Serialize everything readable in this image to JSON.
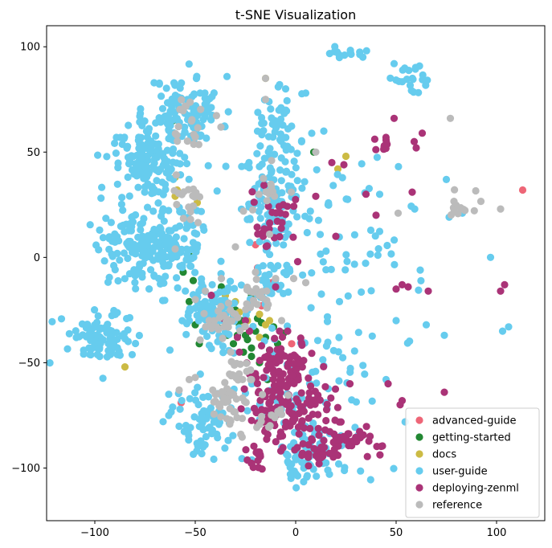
{
  "chart_data": {
    "type": "scatter",
    "title": "t-SNE Visualization",
    "xlabel": "",
    "ylabel": "",
    "xlim": [
      -124,
      124
    ],
    "ylim": [
      -125,
      110
    ],
    "xticks": [
      -100,
      -50,
      0,
      50,
      100
    ],
    "yticks": [
      100,
      50,
      0,
      -50,
      -100
    ],
    "grid": false,
    "legend_position": "lower-right",
    "series": [
      {
        "name": "advanced-guide",
        "color": "#EE6677",
        "points": [
          [
            113,
            32
          ],
          [
            -57,
            -69
          ],
          [
            -12,
            -12
          ],
          [
            -20,
            6
          ],
          [
            -3,
            -70
          ],
          [
            -19,
            -5
          ],
          [
            -2,
            -41
          ],
          [
            -17,
            -23
          ]
        ]
      },
      {
        "name": "getting-started",
        "color": "#228833",
        "points": [
          [
            -61,
            65
          ],
          [
            9,
            50
          ],
          [
            -53,
            1
          ],
          [
            -56,
            -7
          ],
          [
            -51,
            -11
          ],
          [
            -37,
            -14
          ],
          [
            -53,
            -21
          ],
          [
            -45,
            -29
          ],
          [
            -39,
            -33
          ],
          [
            -34,
            -37
          ],
          [
            -30,
            -25
          ],
          [
            -27,
            -30
          ],
          [
            -25,
            -37
          ],
          [
            -22,
            -43
          ],
          [
            -19,
            -29
          ],
          [
            -15,
            -38
          ],
          [
            -13,
            -44
          ],
          [
            -11,
            -33
          ],
          [
            -17,
            -31
          ],
          [
            -22,
            -18
          ],
          [
            -26,
            -45
          ],
          [
            -22,
            -47
          ],
          [
            -18,
            -50
          ],
          [
            -28,
            -32
          ],
          [
            -24,
            -39
          ],
          [
            -50,
            -32
          ],
          [
            -48,
            -41
          ],
          [
            -14,
            -58
          ],
          [
            -9,
            -41
          ],
          [
            -31,
            -41
          ],
          [
            -20,
            -35
          ],
          [
            -6,
            -36
          ],
          [
            -29,
            -37
          ]
        ]
      },
      {
        "name": "docs",
        "color": "#CCBB44",
        "points": [
          [
            -15,
            85
          ],
          [
            -60,
            38
          ],
          [
            -59,
            32
          ],
          [
            -60,
            29
          ],
          [
            -49,
            26
          ],
          [
            21,
            42
          ],
          [
            25,
            48
          ],
          [
            -85,
            -52
          ],
          [
            -35,
            -18
          ],
          [
            -33,
            -24
          ],
          [
            -30,
            -21
          ],
          [
            -31,
            -28
          ],
          [
            -28,
            -26
          ],
          [
            -26,
            -33
          ],
          [
            -18,
            -27
          ],
          [
            -13,
            -30
          ],
          [
            -18,
            -38
          ],
          [
            -24,
            -30
          ],
          [
            -15,
            -32
          ]
        ]
      },
      {
        "name": "user-guide",
        "color": "#66CCEE",
        "clusters": [
          {
            "cx": -55,
            "cy": 70,
            "sx": 9,
            "sy": 8,
            "n": 110,
            "seed": 11
          },
          {
            "cx": -72,
            "cy": 45,
            "sx": 10,
            "sy": 9,
            "n": 140,
            "seed": 12
          },
          {
            "cx": -70,
            "cy": 5,
            "sx": 14,
            "sy": 10,
            "n": 220,
            "seed": 13
          },
          {
            "cx": -95,
            "cy": -38,
            "sx": 9,
            "sy": 6,
            "n": 90,
            "seed": 14
          },
          {
            "cx": -40,
            "cy": -25,
            "sx": 8,
            "sy": 9,
            "n": 90,
            "seed": 15
          },
          {
            "cx": -10,
            "cy": 30,
            "sx": 8,
            "sy": 14,
            "n": 120,
            "seed": 16
          },
          {
            "cx": -10,
            "cy": 65,
            "sx": 5,
            "sy": 6,
            "n": 35,
            "seed": 17
          },
          {
            "cx": -45,
            "cy": -78,
            "sx": 8,
            "sy": 9,
            "n": 70,
            "seed": 18
          },
          {
            "cx": 5,
            "cy": -95,
            "sx": 6,
            "sy": 6,
            "n": 60,
            "seed": 19
          },
          {
            "cx": 25,
            "cy": 97,
            "sx": 6,
            "sy": 2,
            "n": 14,
            "seed": 20
          },
          {
            "cx": 57,
            "cy": 85,
            "sx": 6,
            "sy": 4,
            "n": 22,
            "seed": 21
          },
          {
            "cx": 12,
            "cy": -45,
            "sx": 20,
            "sy": 30,
            "n": 60,
            "seed": 22
          },
          {
            "cx": 35,
            "cy": 10,
            "sx": 18,
            "sy": 15,
            "n": 45,
            "seed": 23
          },
          {
            "cx": -15,
            "cy": -15,
            "sx": 6,
            "sy": 8,
            "n": 40,
            "seed": 24
          },
          {
            "cx": 5,
            "cy": -72,
            "sx": 12,
            "sy": 10,
            "n": 40,
            "seed": 25
          }
        ],
        "points": [
          [
            97,
            0
          ],
          [
            103,
            -35
          ],
          [
            106,
            -33
          ],
          [
            75,
            37
          ],
          [
            65,
            -32
          ],
          [
            74,
            -37
          ],
          [
            62,
            -6
          ],
          [
            83,
            21
          ],
          [
            5,
            78
          ],
          [
            -5,
            80
          ],
          [
            14,
            60
          ],
          [
            -8,
            82
          ],
          [
            -66,
            -78
          ],
          [
            -18,
            -77
          ],
          [
            45,
            -58
          ],
          [
            50,
            -30
          ]
        ]
      },
      {
        "name": "deploying-zenml",
        "color": "#AA3377",
        "clusters": [
          {
            "cx": -10,
            "cy": -70,
            "sx": 8,
            "sy": 12,
            "n": 90,
            "seed": 31
          },
          {
            "cx": -5,
            "cy": -50,
            "sx": 7,
            "sy": 6,
            "n": 50,
            "seed": 32
          },
          {
            "cx": 8,
            "cy": -75,
            "sx": 6,
            "sy": 8,
            "n": 45,
            "seed": 33
          },
          {
            "cx": 25,
            "cy": -85,
            "sx": 5,
            "sy": 4,
            "n": 25,
            "seed": 34
          },
          {
            "cx": 12,
            "cy": -93,
            "sx": 7,
            "sy": 4,
            "n": 25,
            "seed": 35
          },
          {
            "cx": -20,
            "cy": -95,
            "sx": 3,
            "sy": 3,
            "n": 14,
            "seed": 36
          },
          {
            "cx": 38,
            "cy": -90,
            "sx": 4,
            "sy": 3,
            "n": 10,
            "seed": 37
          },
          {
            "cx": -12,
            "cy": 20,
            "sx": 6,
            "sy": 8,
            "n": 28,
            "seed": 38
          },
          {
            "cx": 43,
            "cy": 54,
            "sx": 3,
            "sy": 2,
            "n": 10,
            "seed": 39
          }
        ],
        "points": [
          [
            49,
            66
          ],
          [
            63,
            59
          ],
          [
            59,
            55
          ],
          [
            60,
            52
          ],
          [
            24,
            44
          ],
          [
            18,
            45
          ],
          [
            58,
            31
          ],
          [
            35,
            30
          ],
          [
            40,
            20
          ],
          [
            10,
            29
          ],
          [
            20,
            10
          ],
          [
            53,
            -13
          ],
          [
            56,
            -14
          ],
          [
            50,
            -15
          ],
          [
            66,
            -16
          ],
          [
            104,
            -13
          ],
          [
            102,
            -16
          ],
          [
            46,
            -60
          ],
          [
            53,
            -68
          ],
          [
            52,
            -70
          ],
          [
            74,
            -64
          ],
          [
            27,
            -60
          ],
          [
            -23,
            -35
          ],
          [
            -10,
            -14
          ],
          [
            1,
            -2
          ],
          [
            -4,
            -35
          ],
          [
            -25,
            -30
          ],
          [
            -42,
            -18
          ],
          [
            -36,
            -29
          ],
          [
            -17,
            -42
          ],
          [
            -29,
            -38
          ],
          [
            -8,
            -35
          ],
          [
            -13,
            -51
          ],
          [
            -16,
            -57
          ],
          [
            -28,
            -45
          ]
        ]
      },
      {
        "name": "reference",
        "color": "#BBBBBB",
        "clusters": [
          {
            "cx": -33,
            "cy": -70,
            "sx": 5,
            "sy": 6,
            "n": 40,
            "seed": 41
          },
          {
            "cx": -30,
            "cy": -55,
            "sx": 4,
            "sy": 5,
            "n": 20,
            "seed": 42
          },
          {
            "cx": -38,
            "cy": -30,
            "sx": 6,
            "sy": 5,
            "n": 28,
            "seed": 43
          },
          {
            "cx": -20,
            "cy": -20,
            "sx": 5,
            "sy": 4,
            "n": 20,
            "seed": 44
          },
          {
            "cx": -55,
            "cy": 28,
            "sx": 4,
            "sy": 6,
            "n": 18,
            "seed": 45
          },
          {
            "cx": -52,
            "cy": 65,
            "sx": 5,
            "sy": 6,
            "n": 22,
            "seed": 46
          },
          {
            "cx": -15,
            "cy": 32,
            "sx": 4,
            "sy": 3,
            "n": 12,
            "seed": 47
          },
          {
            "cx": 83,
            "cy": 26,
            "sx": 4,
            "sy": 3,
            "n": 14,
            "seed": 48
          },
          {
            "cx": -12,
            "cy": -75,
            "sx": 5,
            "sy": 4,
            "n": 14,
            "seed": 49
          }
        ],
        "points": [
          [
            -15,
            85
          ],
          [
            77,
            66
          ],
          [
            102,
            23
          ],
          [
            51,
            21
          ],
          [
            10,
            50
          ],
          [
            -15,
            75
          ],
          [
            -10,
            -10
          ],
          [
            -13,
            11
          ],
          [
            -36,
            -67
          ],
          [
            -40,
            -65
          ],
          [
            -50,
            -57
          ],
          [
            5,
            -12
          ],
          [
            -1,
            -10
          ],
          [
            -58,
            -63
          ],
          [
            -53,
            -58
          ],
          [
            -50,
            -20
          ],
          [
            -45,
            -16
          ],
          [
            -37,
            -10
          ],
          [
            -60,
            4
          ],
          [
            -12,
            46
          ],
          [
            -30,
            5
          ],
          [
            -26,
            22
          ],
          [
            -20,
            -7
          ],
          [
            -7,
            -30
          ],
          [
            -22,
            -58
          ]
        ]
      }
    ]
  }
}
